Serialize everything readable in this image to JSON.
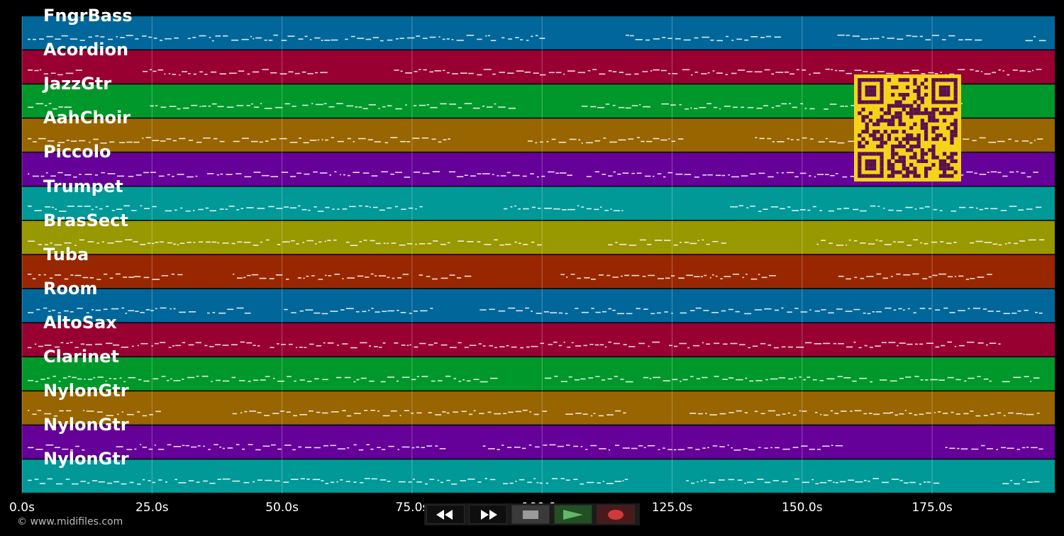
{
  "tracks": [
    {
      "name": "FngrBass",
      "color": "#01679a"
    },
    {
      "name": "Acordion",
      "color": "#980031"
    },
    {
      "name": "JazzGtr",
      "color": "#00982a"
    },
    {
      "name": "AahChoir",
      "color": "#986500"
    },
    {
      "name": "Piccolo",
      "color": "#650098"
    },
    {
      "name": "Trumpet",
      "color": "#019898"
    },
    {
      "name": "BrasSect",
      "color": "#989800"
    },
    {
      "name": "Tuba",
      "color": "#982701"
    },
    {
      "name": "Room",
      "color": "#01679a"
    },
    {
      "name": "AltoSax",
      "color": "#980031"
    },
    {
      "name": "Clarinet",
      "color": "#00982a"
    },
    {
      "name": "NylonGtr",
      "color": "#986500"
    },
    {
      "name": "NylonGtr",
      "color": "#650098"
    },
    {
      "name": "NylonGtr",
      "color": "#019898"
    }
  ],
  "timeline": {
    "ticks": [
      "0.0s",
      "25.0s",
      "50.0s",
      "75.0s",
      "100.0s",
      "125.0s",
      "150.0s",
      "175.0s"
    ],
    "tick_seconds": [
      0,
      25,
      50,
      75,
      100,
      125,
      150,
      175
    ],
    "end_seconds": 198
  },
  "transport": {
    "rewind_icon": "rewind-icon",
    "forward_icon": "fast-forward-icon",
    "stop_icon": "stop-icon",
    "play_icon": "play-icon",
    "record_icon": "record-icon",
    "play_color": "#63b86a",
    "record_color": "#d13a3a"
  },
  "footer": {
    "copyright": "© www.midifiles.com"
  },
  "qr": {
    "color": "#5a0f4c",
    "background": "#f6d31b"
  }
}
